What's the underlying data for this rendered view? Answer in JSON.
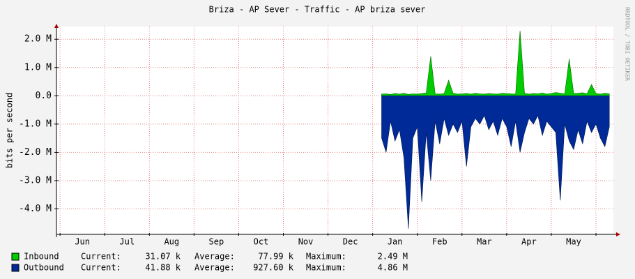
{
  "chart_data": {
    "type": "area",
    "title": "Briza - AP Sever - Traffic - AP briza sever",
    "y_label": "bits per second",
    "watermark": "RRDTOOL / TOBI OETIKER",
    "categories": [
      "Jun",
      "Jul",
      "Aug",
      "Sep",
      "Oct",
      "Nov",
      "Dec",
      "Jan",
      "Feb",
      "Mar",
      "Apr",
      "May"
    ],
    "xlim": [
      -0.08,
      12.39
    ],
    "xticks": [
      0,
      1,
      2,
      3,
      4,
      5,
      6,
      7,
      8,
      9,
      10,
      11,
      12
    ],
    "ylim": [
      -4900000,
      2450000
    ],
    "yticks": [
      {
        "value": -4000000,
        "label": "-4.0 M"
      },
      {
        "value": -3000000,
        "label": "-3.0 M"
      },
      {
        "value": -2000000,
        "label": "-2.0 M"
      },
      {
        "value": -1000000,
        "label": "-1.0 M"
      },
      {
        "value": 0,
        "label": "0.0"
      },
      {
        "value": 1000000,
        "label": "1.0 M"
      },
      {
        "value": 2000000,
        "label": "2.0 M"
      }
    ],
    "grid": true,
    "x": [
      7.2,
      7.3,
      7.4,
      7.5,
      7.6,
      7.7,
      7.8,
      7.9,
      8.0,
      8.1,
      8.2,
      8.3,
      8.4,
      8.5,
      8.6,
      8.7,
      8.8,
      8.9,
      9.0,
      9.1,
      9.2,
      9.3,
      9.4,
      9.5,
      9.6,
      9.7,
      9.8,
      9.9,
      10.0,
      10.1,
      10.2,
      10.3,
      10.4,
      10.5,
      10.6,
      10.7,
      10.8,
      10.9,
      11.0,
      11.1,
      11.2,
      11.3,
      11.4,
      11.5,
      11.6,
      11.7,
      11.8,
      11.9,
      12.0,
      12.1,
      12.2,
      12.3
    ],
    "series": [
      {
        "name": "Inbound",
        "color": "#00cc00",
        "border": "#006600",
        "values": [
          60000,
          70000,
          50000,
          80000,
          60000,
          90000,
          50000,
          70000,
          60000,
          80000,
          100000,
          1400000,
          70000,
          60000,
          80000,
          550000,
          90000,
          60000,
          70000,
          80000,
          60000,
          90000,
          70000,
          60000,
          80000,
          70000,
          60000,
          90000,
          80000,
          70000,
          60000,
          2300000,
          90000,
          60000,
          80000,
          70000,
          100000,
          60000,
          80000,
          120000,
          90000,
          70000,
          1300000,
          80000,
          90000,
          110000,
          70000,
          400000,
          80000,
          60000,
          90000,
          70000
        ],
        "stats": [
          "31.07 k",
          "77.99 k",
          "2.49 M"
        ]
      },
      {
        "name": "Outbound",
        "color": "#002a97",
        "border": "#00184f",
        "values": [
          -1500000,
          -2000000,
          -900000,
          -1600000,
          -1200000,
          -2200000,
          -4700000,
          -1500000,
          -1100000,
          -3750000,
          -1300000,
          -3000000,
          -900000,
          -1700000,
          -800000,
          -1400000,
          -1000000,
          -1300000,
          -900000,
          -2500000,
          -1100000,
          -800000,
          -1000000,
          -700000,
          -1200000,
          -900000,
          -1400000,
          -800000,
          -1100000,
          -1800000,
          -900000,
          -2000000,
          -1300000,
          -800000,
          -1000000,
          -700000,
          -1400000,
          -900000,
          -1100000,
          -1300000,
          -3700000,
          -1000000,
          -1600000,
          -1900000,
          -1200000,
          -1700000,
          -900000,
          -1300000,
          -1000000,
          -1500000,
          -1800000,
          -1100000
        ],
        "stats": [
          "41.88 k",
          "927.60 k",
          "4.86 M"
        ]
      }
    ],
    "stat_labels": [
      "Current:",
      "Average:",
      "Maximum:"
    ]
  }
}
